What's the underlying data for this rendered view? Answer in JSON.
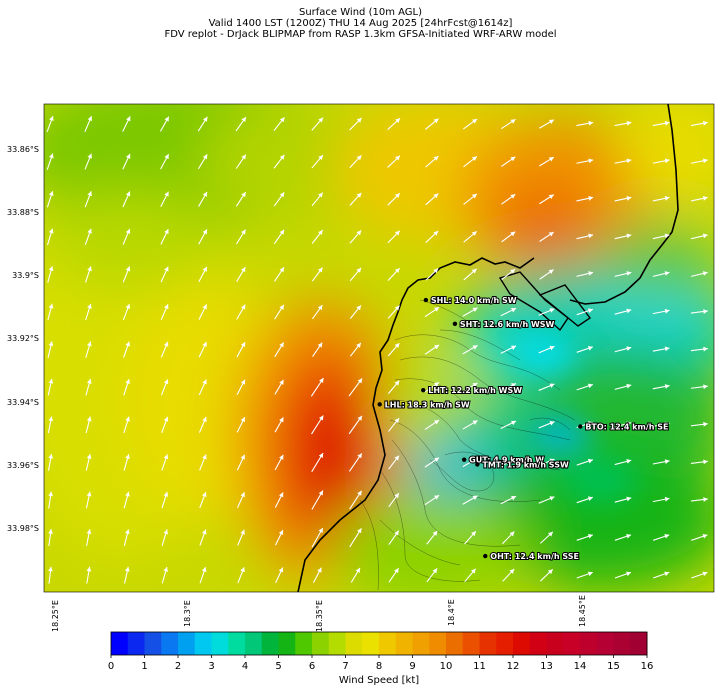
{
  "title": {
    "line1": "Surface Wind (10m AGL)",
    "line2": "Valid 1400 LST (1200Z) THU 14 Aug 2025 [24hrFcst@1614z]",
    "line3": "FDV replot - DrJack BLIPMAP from RASP 1.3km GFSA-Initiated WRF-ARW model"
  },
  "axes": {
    "lon_ticks": [
      "18.25°E",
      "18.3°E",
      "18.35°E",
      "18.4°E",
      "18.45°E"
    ],
    "lat_ticks": [
      "33.86°S",
      "33.88°S",
      "33.9°S",
      "33.92°S",
      "33.94°S",
      "33.96°S",
      "33.98°S"
    ]
  },
  "stations": [
    {
      "name": "SHL: 14.0 km/h SW",
      "lon": 18.392,
      "lat": -33.9075
    },
    {
      "name": "SHT: 12.6 km/h WSW",
      "lon": 18.403,
      "lat": -33.915
    },
    {
      "name": "LHT: 12.2 km/h WSW",
      "lon": 18.391,
      "lat": -33.936
    },
    {
      "name": "LHL: 18.3 km/h SW",
      "lon": 18.3745,
      "lat": -33.9405
    },
    {
      "name": "BTO: 12.4 km/h SE",
      "lon": 18.4505,
      "lat": -33.9475
    },
    {
      "name": "GUT: 4.9 km/h W",
      "lon": 18.4065,
      "lat": -33.958
    },
    {
      "name": "TMT: 1.9 km/h SSW",
      "lon": 18.4115,
      "lat": -33.9595
    },
    {
      "name": "OHT: 12.4 km/h SSE",
      "lon": 18.4145,
      "lat": -33.9885
    }
  ],
  "colorbar": {
    "label": "Wind Speed [kt]",
    "ticks": [
      "0",
      "1",
      "2",
      "3",
      "4",
      "5",
      "6",
      "7",
      "8",
      "9",
      "10",
      "11",
      "12",
      "13",
      "14",
      "15",
      "16"
    ],
    "colors": [
      "#0000ff",
      "#0a28f0",
      "#1450e6",
      "#0a78f0",
      "#00a0f0",
      "#00c8f0",
      "#00dcdc",
      "#00dca0",
      "#00c878",
      "#00b43c",
      "#14b414",
      "#50c800",
      "#8cd200",
      "#b4dc00",
      "#dcdc00",
      "#ebe100",
      "#f0c800",
      "#f0b400",
      "#f0a000",
      "#f08c00",
      "#eb6e00",
      "#eb5000",
      "#e63200",
      "#e61e00",
      "#dc0a00",
      "#d20014",
      "#c8001e",
      "#c80028",
      "#be002d",
      "#b40032",
      "#aa0032",
      "#a00032"
    ]
  }
}
